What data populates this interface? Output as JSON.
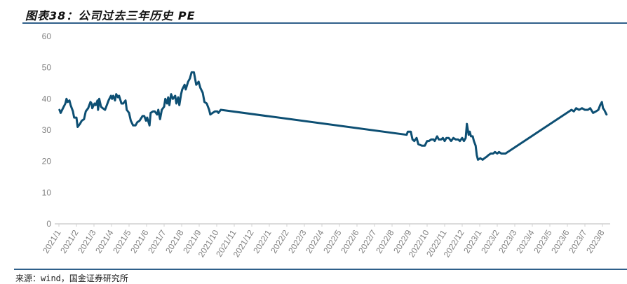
{
  "title": "图表38：公司过去三年历史 PE",
  "source": "来源：wind，国金证券研究所",
  "chart_data": {
    "type": "line",
    "title": "",
    "xlabel": "",
    "ylabel": "",
    "ylim": [
      0,
      60
    ],
    "yticks": [
      0,
      10,
      20,
      30,
      40,
      50,
      60
    ],
    "xticks": [
      "2021/1",
      "2021/2",
      "2021/3",
      "2021/4",
      "2021/5",
      "2021/6",
      "2021/7",
      "2021/8",
      "2021/9",
      "2021/10",
      "2021/11",
      "2021/12",
      "2022/1",
      "2022/2",
      "2022/3",
      "2022/4",
      "2022/5",
      "2022/6",
      "2022/7",
      "2022/8",
      "2022/9",
      "2022/10",
      "2022/11",
      "2022/12",
      "2023/1",
      "2023/2",
      "2023/3",
      "2023/4",
      "2023/5",
      "2023/6",
      "2023/7",
      "2023/8"
    ],
    "grid": false,
    "legend": "none",
    "color": "#0d4f73",
    "series": [
      {
        "points": [
          [
            "2021-01-02",
            36.5
          ],
          [
            "2021-01-04",
            35.5
          ],
          [
            "2021-01-08",
            37
          ],
          [
            "2021-01-12",
            38.5
          ],
          [
            "2021-01-14",
            40
          ],
          [
            "2021-01-16",
            39
          ],
          [
            "2021-01-19",
            39.5
          ],
          [
            "2021-01-21",
            38
          ],
          [
            "2021-01-25",
            36
          ],
          [
            "2021-01-27",
            34
          ],
          [
            "2021-02-01",
            34
          ],
          [
            "2021-02-03",
            31
          ],
          [
            "2021-02-07",
            32
          ],
          [
            "2021-02-10",
            33
          ],
          [
            "2021-02-14",
            33.5
          ],
          [
            "2021-02-17",
            36
          ],
          [
            "2021-02-21",
            37
          ],
          [
            "2021-02-25",
            39
          ],
          [
            "2021-02-27",
            38.5
          ],
          [
            "2021-02-28",
            37
          ],
          [
            "2021-03-02",
            38.5
          ],
          [
            "2021-03-04",
            38
          ],
          [
            "2021-03-07",
            39.5
          ],
          [
            "2021-03-08",
            36.5
          ],
          [
            "2021-03-10",
            40
          ],
          [
            "2021-03-13",
            37.5
          ],
          [
            "2021-03-16",
            37
          ],
          [
            "2021-03-20",
            36.5
          ],
          [
            "2021-03-22",
            37.5
          ],
          [
            "2021-03-26",
            39.5
          ],
          [
            "2021-03-30",
            41
          ],
          [
            "2021-04-02",
            40
          ],
          [
            "2021-04-04",
            41
          ],
          [
            "2021-04-07",
            39.5
          ],
          [
            "2021-04-09",
            41.5
          ],
          [
            "2021-04-12",
            40.5
          ],
          [
            "2021-04-14",
            41
          ],
          [
            "2021-04-18",
            38.5
          ],
          [
            "2021-04-21",
            38.5
          ],
          [
            "2021-04-25",
            39.5
          ],
          [
            "2021-04-27",
            36.5
          ],
          [
            "2021-05-01",
            35.5
          ],
          [
            "2021-05-04",
            33
          ],
          [
            "2021-05-08",
            31.5
          ],
          [
            "2021-05-12",
            31.5
          ],
          [
            "2021-05-15",
            32.5
          ],
          [
            "2021-05-19",
            33
          ],
          [
            "2021-05-24",
            34.5
          ],
          [
            "2021-05-27",
            34.5
          ],
          [
            "2021-05-30",
            33
          ],
          [
            "2021-06-02",
            34
          ],
          [
            "2021-06-06",
            31.5
          ],
          [
            "2021-06-08",
            35.5
          ],
          [
            "2021-06-12",
            36
          ],
          [
            "2021-06-15",
            36
          ],
          [
            "2021-06-19",
            35
          ],
          [
            "2021-06-21",
            36.5
          ],
          [
            "2021-06-24",
            33.5
          ],
          [
            "2021-06-27",
            36.5
          ],
          [
            "2021-07-01",
            37.5
          ],
          [
            "2021-07-03",
            40
          ],
          [
            "2021-07-06",
            38.5
          ],
          [
            "2021-07-08",
            40.5
          ],
          [
            "2021-07-10",
            38
          ],
          [
            "2021-07-13",
            41.5
          ],
          [
            "2021-07-16",
            40
          ],
          [
            "2021-07-20",
            41
          ],
          [
            "2021-07-22",
            38.5
          ],
          [
            "2021-07-25",
            40.5
          ],
          [
            "2021-07-27",
            38
          ],
          [
            "2021-07-30",
            41.5
          ],
          [
            "2021-08-02",
            43
          ],
          [
            "2021-08-06",
            44.5
          ],
          [
            "2021-08-08",
            43
          ],
          [
            "2021-08-12",
            45.5
          ],
          [
            "2021-08-15",
            46.5
          ],
          [
            "2021-08-18",
            48.5
          ],
          [
            "2021-08-22",
            48.5
          ],
          [
            "2021-08-26",
            44.5
          ],
          [
            "2021-08-30",
            45.5
          ],
          [
            "2021-09-03",
            43.5
          ],
          [
            "2021-09-07",
            42
          ],
          [
            "2021-09-10",
            39
          ],
          [
            "2021-09-14",
            38.5
          ],
          [
            "2021-09-18",
            36.5
          ],
          [
            "2021-09-20",
            35
          ],
          [
            "2021-09-24",
            35.5
          ],
          [
            "2021-09-28",
            36
          ],
          [
            "2021-10-02",
            36
          ],
          [
            "2021-10-04",
            35.5
          ],
          [
            "2021-10-08",
            36.5
          ],
          [
            "2022-08-26",
            28.5
          ],
          [
            "2022-08-28",
            29.5
          ],
          [
            "2022-09-03",
            29.5
          ],
          [
            "2022-09-06",
            27
          ],
          [
            "2022-09-09",
            26.5
          ],
          [
            "2022-09-13",
            27.5
          ],
          [
            "2022-09-16",
            25.5
          ],
          [
            "2022-09-22",
            25
          ],
          [
            "2022-09-27",
            25
          ],
          [
            "2022-10-01",
            26.5
          ],
          [
            "2022-10-04",
            26.5
          ],
          [
            "2022-10-08",
            27
          ],
          [
            "2022-10-12",
            27
          ],
          [
            "2022-10-14",
            26.5
          ],
          [
            "2022-10-18",
            28
          ],
          [
            "2022-10-21",
            27
          ],
          [
            "2022-10-25",
            27
          ],
          [
            "2022-10-28",
            27.5
          ],
          [
            "2022-11-01",
            26.5
          ],
          [
            "2022-11-04",
            27.5
          ],
          [
            "2022-11-08",
            27.5
          ],
          [
            "2022-11-12",
            26.5
          ],
          [
            "2022-11-16",
            27.5
          ],
          [
            "2022-11-20",
            27
          ],
          [
            "2022-11-24",
            27
          ],
          [
            "2022-11-27",
            26.5
          ],
          [
            "2022-12-01",
            27.5
          ],
          [
            "2022-12-04",
            26.5
          ],
          [
            "2022-12-07",
            27.5
          ],
          [
            "2022-12-09",
            32
          ],
          [
            "2022-12-12",
            28.5
          ],
          [
            "2022-12-14",
            29.5
          ],
          [
            "2022-12-16",
            28
          ],
          [
            "2022-12-19",
            28
          ],
          [
            "2022-12-21",
            26.5
          ],
          [
            "2022-12-24",
            25
          ],
          [
            "2022-12-26",
            22
          ],
          [
            "2022-12-28",
            20.5
          ],
          [
            "2023-01-02",
            21
          ],
          [
            "2023-01-06",
            20.5
          ],
          [
            "2023-01-09",
            21
          ],
          [
            "2023-01-13",
            21.5
          ],
          [
            "2023-01-16",
            22
          ],
          [
            "2023-01-20",
            22.5
          ],
          [
            "2023-01-24",
            22.5
          ],
          [
            "2023-01-27",
            23
          ],
          [
            "2023-02-01",
            22.5
          ],
          [
            "2023-02-04",
            23
          ],
          [
            "2023-02-08",
            22.5
          ],
          [
            "2023-02-12",
            22.5
          ],
          [
            "2023-02-15",
            22.5
          ],
          [
            "2023-06-04",
            36
          ],
          [
            "2023-06-08",
            36.5
          ],
          [
            "2023-06-12",
            36
          ],
          [
            "2023-06-16",
            37
          ],
          [
            "2023-06-21",
            36.5
          ],
          [
            "2023-06-26",
            37
          ],
          [
            "2023-07-01",
            36.5
          ],
          [
            "2023-07-06",
            36.5
          ],
          [
            "2023-07-10",
            37
          ],
          [
            "2023-07-15",
            35.5
          ],
          [
            "2023-07-20",
            36
          ],
          [
            "2023-07-24",
            36.5
          ],
          [
            "2023-07-27",
            38
          ],
          [
            "2023-07-30",
            39
          ],
          [
            "2023-08-02",
            37
          ],
          [
            "2023-08-04",
            36.5
          ],
          [
            "2023-08-08",
            35
          ]
        ]
      }
    ]
  }
}
